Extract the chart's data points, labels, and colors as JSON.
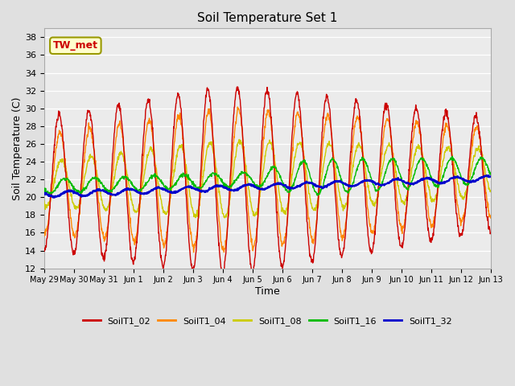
{
  "title": "Soil Temperature Set 1",
  "xlabel": "Time",
  "ylabel": "Soil Temperature (C)",
  "ylim": [
    12,
    39
  ],
  "yticks": [
    12,
    14,
    16,
    18,
    20,
    22,
    24,
    26,
    28,
    30,
    32,
    34,
    36,
    38
  ],
  "colors": {
    "SoilT1_02": "#cc0000",
    "SoilT1_04": "#ff8800",
    "SoilT1_08": "#cccc00",
    "SoilT1_16": "#00bb00",
    "SoilT1_32": "#0000cc"
  },
  "annotation": {
    "text": "TW_met",
    "facecolor": "#ffffcc",
    "edgecolor": "#999900",
    "textcolor": "#cc0000",
    "fontsize": 9,
    "fontweight": "bold"
  },
  "background_color": "#e0e0e0",
  "plot_background": "#ebebeb",
  "grid_color": "#ffffff",
  "linewidth": 1.0,
  "n_days": 15,
  "n_points_per_day": 96
}
